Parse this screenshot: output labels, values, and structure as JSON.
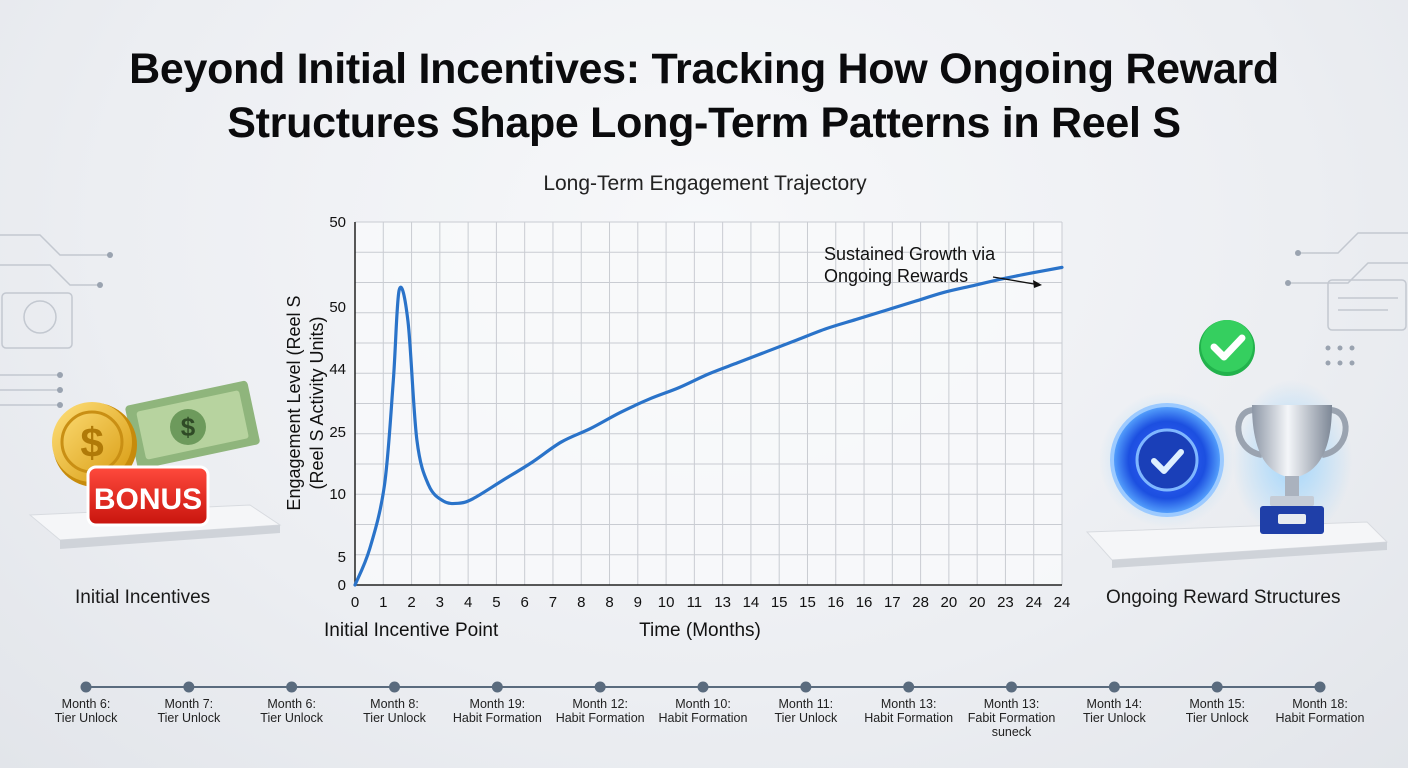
{
  "page": {
    "title_line1": "Beyond Initial Incentives: Tracking How Ongoing Reward",
    "title_line2": "Structures Shape Long-Term Patterns in Reel S"
  },
  "left_panel": {
    "label": "Initial Incentives",
    "badge_text": "BONUS"
  },
  "right_panel": {
    "label": "Ongoing Reward Structures"
  },
  "colors": {
    "line": "#2a73c9",
    "grid": "#c9ccd2",
    "timeline": "#5a6b7e"
  },
  "chart_data": {
    "type": "line",
    "title": "Long-Term Engagement Trajectory",
    "xlabel": "Time (Months)",
    "ylabel_line1": "Engagement Level (Reel S",
    "ylabel_line2": "(Reel S Activity Units)",
    "x_tick_labels": [
      "0",
      "1",
      "2",
      "3",
      "4",
      "5",
      "6",
      "7",
      "8",
      "8",
      "9",
      "10",
      "11",
      "13",
      "14",
      "15",
      "15",
      "16",
      "16",
      "17",
      "28",
      "20",
      "20",
      "23",
      "24",
      "24"
    ],
    "y_tick_labels": [
      "0",
      "5",
      "10",
      "25",
      "44",
      "50",
      "50"
    ],
    "grid": true,
    "series": [
      {
        "x": [
          0,
          0.5,
          1,
          1.3,
          1.5,
          1.8,
          2.1,
          2.5,
          3,
          3.5,
          4,
          5,
          6,
          7,
          8,
          9,
          10,
          11,
          12,
          13,
          14,
          15,
          16,
          17,
          18,
          19,
          20,
          21,
          22,
          23,
          24
        ],
        "y": [
          0,
          0.8,
          2.2,
          4.5,
          6.5,
          5.8,
          3.2,
          2.2,
          1.85,
          1.8,
          1.9,
          2.3,
          2.7,
          3.15,
          3.45,
          3.8,
          4.1,
          4.35,
          4.65,
          4.9,
          5.15,
          5.4,
          5.65,
          5.85,
          6.05,
          6.25,
          6.45,
          6.6,
          6.75,
          6.88,
          7.0
        ]
      }
    ],
    "annotations": [
      {
        "text_line1": "Sustained Growth via",
        "text_line2": "Ongoing Rewards",
        "points_to_x": 24
      },
      {
        "text": "Initial Incentive Point",
        "points_to_x": 1.5
      }
    ],
    "note": ""
  },
  "timeline": [
    {
      "line1": "Month 6:",
      "line2": "Tier Unlock"
    },
    {
      "line1": "Month 7:",
      "line2": "Tier Unlock"
    },
    {
      "line1": "Month 6:",
      "line2": "Tier Unlock"
    },
    {
      "line1": "Month 8:",
      "line2": "Tier Unlock"
    },
    {
      "line1": "Month 19:",
      "line2": "Habit Formation"
    },
    {
      "line1": "Month 12:",
      "line2": "Habit Formation"
    },
    {
      "line1": "Month 10:",
      "line2": "Habit Formation"
    },
    {
      "line1": "Month 11:",
      "line2": "Tier Unlock"
    },
    {
      "line1": "Month 13:",
      "line2": "Habit Formation"
    },
    {
      "line1": "Month 13:",
      "line2": "Fabit Formation",
      "line3": "suneck"
    },
    {
      "line1": "Month 14:",
      "line2": "Tier Unlock"
    },
    {
      "line1": "Month 15:",
      "line2": "Tier Unlock"
    },
    {
      "line1": "Month 18:",
      "line2": "Habit Formation"
    }
  ]
}
